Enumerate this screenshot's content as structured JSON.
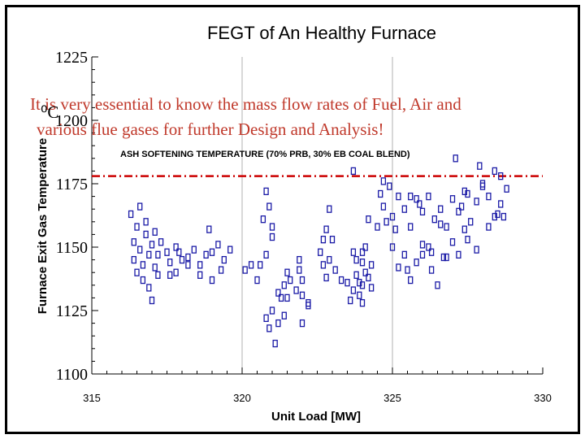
{
  "overlay": {
    "note_line1": "It is very essential to know the mass flow rates of Fuel, Air and",
    "note_line2": "various flue gases  for further Design and Analysis!",
    "unit_label": "⁰C",
    "color": "#c0392b"
  },
  "chart_data": {
    "type": "scatter",
    "title": "FEGT of An Healthy Furnace",
    "xlabel": "Unit Load [MW]",
    "ylabel": "Furnace Exit Gas Temperature",
    "xlim": [
      315,
      330
    ],
    "ylim": [
      1100,
      1225
    ],
    "x_ticks": [
      "315",
      "320",
      "325",
      "330"
    ],
    "y_ticks": [
      "1225",
      "1200",
      "1175",
      "1150",
      "1125",
      "1100"
    ],
    "marker_color": "#1a1aa6",
    "series": [
      {
        "marker": "hollow-square",
        "points": [
          [
            316.3,
            1163
          ],
          [
            316.4,
            1152
          ],
          [
            316.4,
            1145
          ],
          [
            316.5,
            1140
          ],
          [
            316.5,
            1158
          ],
          [
            316.6,
            1166
          ],
          [
            316.6,
            1149
          ],
          [
            316.7,
            1143
          ],
          [
            316.7,
            1137
          ],
          [
            316.8,
            1160
          ],
          [
            316.8,
            1155
          ],
          [
            316.9,
            1147
          ],
          [
            316.9,
            1134
          ],
          [
            317.0,
            1129
          ],
          [
            317.0,
            1151
          ],
          [
            317.1,
            1142
          ],
          [
            317.1,
            1156
          ],
          [
            317.2,
            1139
          ],
          [
            317.2,
            1147
          ],
          [
            317.3,
            1152
          ],
          [
            317.5,
            1148
          ],
          [
            317.6,
            1144
          ],
          [
            317.8,
            1150
          ],
          [
            318.0,
            1145
          ],
          [
            318.2,
            1146
          ],
          [
            318.4,
            1149
          ],
          [
            318.6,
            1143
          ],
          [
            318.8,
            1147
          ],
          [
            319.0,
            1148
          ],
          [
            319.2,
            1151
          ],
          [
            319.4,
            1145
          ],
          [
            319.6,
            1149
          ],
          [
            317.9,
            1148
          ],
          [
            318.6,
            1139
          ],
          [
            319.0,
            1137
          ],
          [
            318.9,
            1157
          ],
          [
            317.8,
            1140
          ],
          [
            319.3,
            1141
          ],
          [
            318.2,
            1143
          ],
          [
            317.6,
            1139
          ],
          [
            320.1,
            1141
          ],
          [
            320.3,
            1143
          ],
          [
            320.5,
            1137
          ],
          [
            320.6,
            1143
          ],
          [
            320.8,
            1147
          ],
          [
            321.0,
            1154
          ],
          [
            321.2,
            1132
          ],
          [
            320.8,
            1122
          ],
          [
            320.9,
            1118
          ],
          [
            321.0,
            1125
          ],
          [
            321.1,
            1112
          ],
          [
            321.2,
            1120
          ],
          [
            321.3,
            1130
          ],
          [
            321.4,
            1123
          ],
          [
            321.5,
            1140
          ],
          [
            321.6,
            1137
          ],
          [
            321.8,
            1133
          ],
          [
            321.9,
            1141
          ],
          [
            322.0,
            1131
          ],
          [
            322.2,
            1127
          ],
          [
            320.9,
            1166
          ],
          [
            320.8,
            1172
          ],
          [
            320.7,
            1161
          ],
          [
            321.0,
            1158
          ],
          [
            322.0,
            1120
          ],
          [
            321.4,
            1135
          ],
          [
            322.0,
            1137
          ],
          [
            322.2,
            1128
          ],
          [
            321.9,
            1145
          ],
          [
            321.5,
            1130
          ],
          [
            322.6,
            1148
          ],
          [
            322.7,
            1143
          ],
          [
            322.8,
            1138
          ],
          [
            322.9,
            1145
          ],
          [
            323.0,
            1153
          ],
          [
            322.9,
            1165
          ],
          [
            323.1,
            1141
          ],
          [
            323.3,
            1137
          ],
          [
            322.7,
            1153
          ],
          [
            322.8,
            1157
          ],
          [
            323.7,
            1133
          ],
          [
            323.8,
            1139
          ],
          [
            323.9,
            1131
          ],
          [
            324.0,
            1135
          ],
          [
            324.0,
            1144
          ],
          [
            324.1,
            1140
          ],
          [
            324.2,
            1138
          ],
          [
            324.2,
            1161
          ],
          [
            324.3,
            1143
          ],
          [
            323.7,
            1148
          ],
          [
            323.8,
            1145
          ],
          [
            323.9,
            1136
          ],
          [
            324.0,
            1128
          ],
          [
            324.1,
            1150
          ],
          [
            323.6,
            1129
          ],
          [
            324.3,
            1134
          ],
          [
            323.5,
            1136
          ],
          [
            324.0,
            1148
          ],
          [
            324.5,
            1158
          ],
          [
            324.6,
            1171
          ],
          [
            324.7,
            1166
          ],
          [
            324.8,
            1160
          ],
          [
            324.9,
            1174
          ],
          [
            325.0,
            1162
          ],
          [
            325.2,
            1170
          ],
          [
            325.4,
            1165
          ],
          [
            325.6,
            1158
          ],
          [
            325.8,
            1169
          ],
          [
            326.0,
            1164
          ],
          [
            326.2,
            1170
          ],
          [
            326.4,
            1161
          ],
          [
            326.6,
            1165
          ],
          [
            326.8,
            1158
          ],
          [
            327.0,
            1169
          ],
          [
            327.2,
            1164
          ],
          [
            327.4,
            1172
          ],
          [
            327.6,
            1160
          ],
          [
            327.8,
            1168
          ],
          [
            328.0,
            1174
          ],
          [
            328.2,
            1170
          ],
          [
            328.4,
            1162
          ],
          [
            328.6,
            1167
          ],
          [
            328.8,
            1173
          ],
          [
            327.9,
            1182
          ],
          [
            328.0,
            1175
          ],
          [
            327.1,
            1185
          ],
          [
            328.6,
            1178
          ],
          [
            327.5,
            1171
          ],
          [
            325.0,
            1150
          ],
          [
            325.2,
            1142
          ],
          [
            325.4,
            1147
          ],
          [
            325.6,
            1137
          ],
          [
            325.8,
            1144
          ],
          [
            326.0,
            1151
          ],
          [
            326.3,
            1141
          ],
          [
            326.5,
            1135
          ],
          [
            326.7,
            1146
          ],
          [
            327.0,
            1152
          ],
          [
            327.2,
            1147
          ],
          [
            327.5,
            1153
          ],
          [
            327.8,
            1149
          ],
          [
            328.2,
            1158
          ],
          [
            328.5,
            1163
          ],
          [
            326.0,
            1147
          ],
          [
            328.7,
            1162
          ],
          [
            327.4,
            1157
          ],
          [
            325.5,
            1141
          ],
          [
            326.2,
            1150
          ],
          [
            326.6,
            1159
          ],
          [
            327.3,
            1166
          ],
          [
            325.9,
            1167
          ],
          [
            324.7,
            1176
          ],
          [
            323.7,
            1180
          ],
          [
            325.6,
            1170
          ],
          [
            328.4,
            1180
          ],
          [
            326.3,
            1148
          ],
          [
            326.8,
            1146
          ],
          [
            325.1,
            1157
          ]
        ]
      }
    ],
    "reference_line": {
      "y": 1178,
      "label": "ASH SOFTENING TEMPERATURE (70% PRB, 30% EB COAL BLEND)",
      "color": "#cc0000"
    }
  }
}
